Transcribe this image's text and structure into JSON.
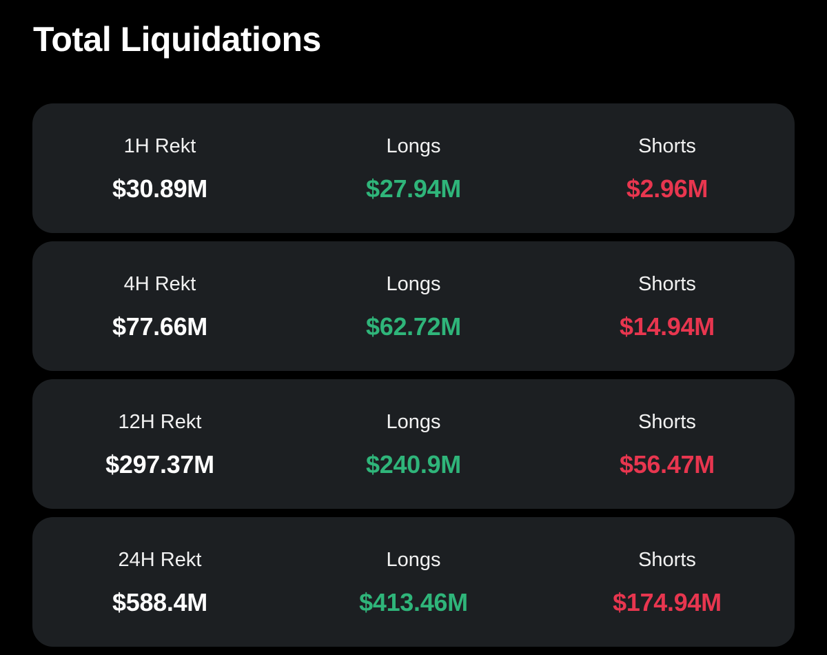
{
  "header": {
    "title": "Total Liquidations"
  },
  "colors": {
    "background": "#000000",
    "card": "#1c1f22",
    "longs": "#2fb57a",
    "shorts": "#e8364f",
    "text": "#ffffff"
  },
  "cards": [
    {
      "period_label": "1H Rekt",
      "total": "$30.89M",
      "longs_label": "Longs",
      "longs": "$27.94M",
      "shorts_label": "Shorts",
      "shorts": "$2.96M"
    },
    {
      "period_label": "4H Rekt",
      "total": "$77.66M",
      "longs_label": "Longs",
      "longs": "$62.72M",
      "shorts_label": "Shorts",
      "shorts": "$14.94M"
    },
    {
      "period_label": "12H Rekt",
      "total": "$297.37M",
      "longs_label": "Longs",
      "longs": "$240.9M",
      "shorts_label": "Shorts",
      "shorts": "$56.47M"
    },
    {
      "period_label": "24H Rekt",
      "total": "$588.4M",
      "longs_label": "Longs",
      "longs": "$413.46M",
      "shorts_label": "Shorts",
      "shorts": "$174.94M"
    }
  ]
}
